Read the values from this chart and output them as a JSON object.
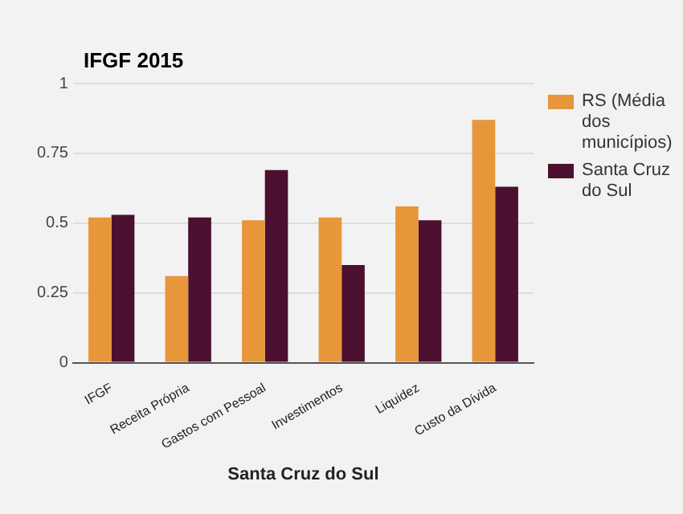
{
  "chart_data": {
    "type": "bar",
    "title": "IFGF 2015",
    "xlabel": "Santa Cruz do Sul",
    "categories": [
      "IFGF",
      "Receita Própria",
      "Gastos com Pessoal",
      "Investimentos",
      "Liquidez",
      "Custo da Dívida"
    ],
    "series": [
      {
        "name": "RS (Média dos municípios)",
        "color": "#e8963a",
        "values": [
          0.52,
          0.31,
          0.51,
          0.52,
          0.56,
          0.87
        ]
      },
      {
        "name": "Santa Cruz do Sul",
        "color": "#4b1030",
        "values": [
          0.53,
          0.52,
          0.69,
          0.35,
          0.51,
          0.63
        ]
      }
    ],
    "ylim": [
      0,
      1
    ],
    "yticks": [
      0,
      0.25,
      0.5,
      0.75,
      1
    ],
    "grid": "y",
    "legend": "right"
  }
}
